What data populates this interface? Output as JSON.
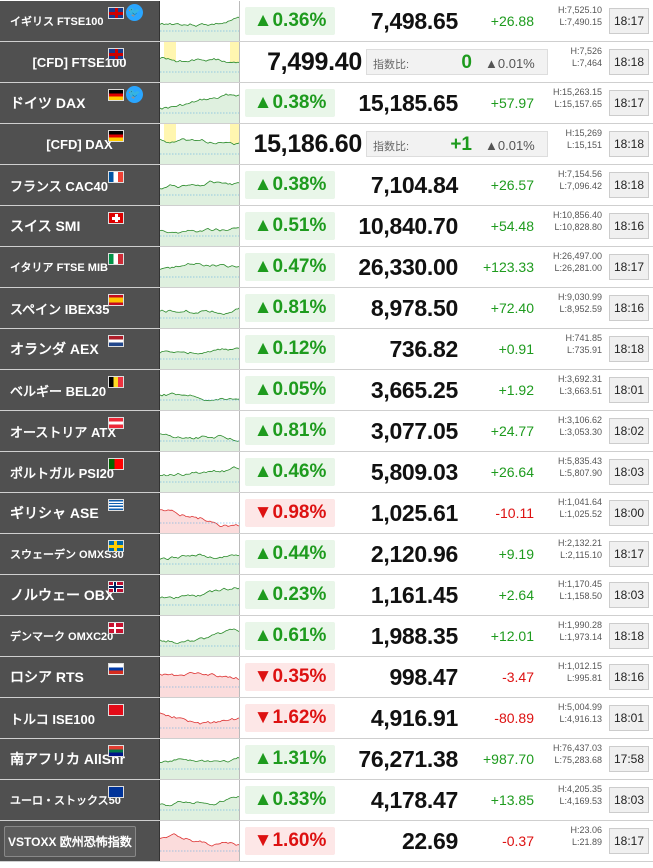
{
  "rows": [
    {
      "id": "ftse100",
      "name": "イギリス FTSE100",
      "size": "small",
      "flag": "uk",
      "twitter": true,
      "pct": "0.36%",
      "dir": "up",
      "price": "7,498.65",
      "change": "+26.88",
      "high": "H:7,525.10",
      "low": "L:7,490.15",
      "time": "18:17"
    },
    {
      "id": "cfd-ftse100",
      "cfd": true,
      "name": "[CFD] FTSE100",
      "flag": "uk",
      "price": "7,499.40",
      "ratio_label": "指数比:",
      "ratio": "0",
      "ratio_pct": "▲0.01%",
      "high": "H:7,526",
      "low": "L:7,464",
      "time": "18:18"
    },
    {
      "id": "dax",
      "name": "ドイツ DAX",
      "size": "big",
      "flag": "de",
      "twitter": true,
      "pct": "0.38%",
      "dir": "up",
      "price": "15,185.65",
      "change": "+57.97",
      "high": "H:15,263.15",
      "low": "L:15,157.65",
      "time": "18:17"
    },
    {
      "id": "cfd-dax",
      "cfd": true,
      "name": "[CFD] DAX",
      "flag": "de",
      "price": "15,186.60",
      "ratio_label": "指数比:",
      "ratio": "+1",
      "ratio_pct": "▲0.01%",
      "high": "H:15,269",
      "low": "L:15,151",
      "time": "18:18"
    },
    {
      "id": "cac40",
      "name": "フランス CAC40",
      "size": "mid",
      "flag": "fr",
      "pct": "0.38%",
      "dir": "up",
      "price": "7,104.84",
      "change": "+26.57",
      "high": "H:7,154.56",
      "low": "L:7,096.42",
      "time": "18:18"
    },
    {
      "id": "smi",
      "name": "スイス SMI",
      "size": "big",
      "flag": "ch",
      "pct": "0.51%",
      "dir": "up",
      "price": "10,840.70",
      "change": "+54.48",
      "high": "H:10,856.40",
      "low": "L:10,828.80",
      "time": "18:16"
    },
    {
      "id": "ftsemib",
      "name": "イタリア FTSE MIB",
      "size": "small",
      "flag": "it",
      "pct": "0.47%",
      "dir": "up",
      "price": "26,330.00",
      "change": "+123.33",
      "high": "H:26,497.00",
      "low": "L:26,281.00",
      "time": "18:17"
    },
    {
      "id": "ibex35",
      "name": "スペイン IBEX35",
      "size": "mid",
      "flag": "es",
      "pct": "0.81%",
      "dir": "up",
      "price": "8,978.50",
      "change": "+72.40",
      "high": "H:9,030.99",
      "low": "L:8,952.59",
      "time": "18:16"
    },
    {
      "id": "aex",
      "name": "オランダ AEX",
      "size": "big",
      "flag": "nl",
      "pct": "0.12%",
      "dir": "up",
      "price": "736.82",
      "change": "+0.91",
      "high": "H:741.85",
      "low": "L:735.91",
      "time": "18:18"
    },
    {
      "id": "bel20",
      "name": "ベルギー BEL20",
      "size": "mid",
      "flag": "be",
      "pct": "0.05%",
      "dir": "up",
      "price": "3,665.25",
      "change": "+1.92",
      "high": "H:3,692.31",
      "low": "L:3,663.51",
      "time": "18:01"
    },
    {
      "id": "atx",
      "name": "オーストリア ATX",
      "size": "mid",
      "flag": "at",
      "pct": "0.81%",
      "dir": "up",
      "price": "3,077.05",
      "change": "+24.77",
      "high": "H:3,106.62",
      "low": "L:3,053.30",
      "time": "18:02"
    },
    {
      "id": "psi20",
      "name": "ポルトガル PSI20",
      "size": "mid",
      "flag": "pt",
      "pct": "0.46%",
      "dir": "up",
      "price": "5,809.03",
      "change": "+26.64",
      "high": "H:5,835.43",
      "low": "L:5,807.90",
      "time": "18:03"
    },
    {
      "id": "ase",
      "name": "ギリシャ ASE",
      "size": "big",
      "flag": "gr",
      "pct": "0.98%",
      "dir": "down",
      "price": "1,025.61",
      "change": "-10.11",
      "high": "H:1,041.64",
      "low": "L:1,025.52",
      "time": "18:00"
    },
    {
      "id": "omxs30",
      "name": "スウェーデン OMXS30",
      "size": "small",
      "flag": "se",
      "pct": "0.44%",
      "dir": "up",
      "price": "2,120.96",
      "change": "+9.19",
      "high": "H:2,132.21",
      "low": "L:2,115.10",
      "time": "18:17"
    },
    {
      "id": "obx",
      "name": "ノルウェー OBX",
      "size": "big",
      "flag": "no",
      "pct": "0.23%",
      "dir": "up",
      "price": "1,161.45",
      "change": "+2.64",
      "high": "H:1,170.45",
      "low": "L:1,158.50",
      "time": "18:03"
    },
    {
      "id": "omxc20",
      "name": "デンマーク OMXC20",
      "size": "small",
      "flag": "dk",
      "pct": "0.61%",
      "dir": "up",
      "price": "1,988.35",
      "change": "+12.01",
      "high": "H:1,990.28",
      "low": "L:1,973.14",
      "time": "18:18"
    },
    {
      "id": "rts",
      "name": "ロシア RTS",
      "size": "big",
      "flag": "ru",
      "pct": "0.35%",
      "dir": "down",
      "price": "998.47",
      "change": "-3.47",
      "high": "H:1,012.15",
      "low": "L:995.81",
      "time": "18:16"
    },
    {
      "id": "ise100",
      "name": "トルコ ISE100",
      "size": "mid",
      "flag": "tr",
      "pct": "1.62%",
      "dir": "down",
      "price": "4,916.91",
      "change": "-80.89",
      "high": "H:5,004.99",
      "low": "L:4,916.13",
      "time": "18:01"
    },
    {
      "id": "allshr",
      "name": "南アフリカ AllShr",
      "size": "big",
      "flag": "za",
      "pct": "1.31%",
      "dir": "up",
      "price": "76,271.38",
      "change": "+987.70",
      "high": "H:76,437.03",
      "low": "L:75,283.68",
      "time": "17:58"
    },
    {
      "id": "stoxx50",
      "name": "ユーロ・ストックス50",
      "size": "small",
      "flag": "eu",
      "pct": "0.33%",
      "dir": "up",
      "price": "4,178.47",
      "change": "+13.85",
      "high": "H:4,205.35",
      "low": "L:4,169.53",
      "time": "18:03"
    },
    {
      "id": "vstoxx",
      "vstoxx": true,
      "name": "VSTOXX 欧州恐怖指数",
      "pct": "1.60%",
      "dir": "down",
      "price": "22.69",
      "change": "-0.37",
      "high": "H:23.06",
      "low": "L:21.89",
      "time": "18:17"
    }
  ],
  "arrows": {
    "up": "▲",
    "down": "▼"
  },
  "twitter_glyph": "🐦",
  "colors": {
    "up": "#1e9b1e",
    "down": "#dd1111",
    "name_bg": "#505050"
  }
}
